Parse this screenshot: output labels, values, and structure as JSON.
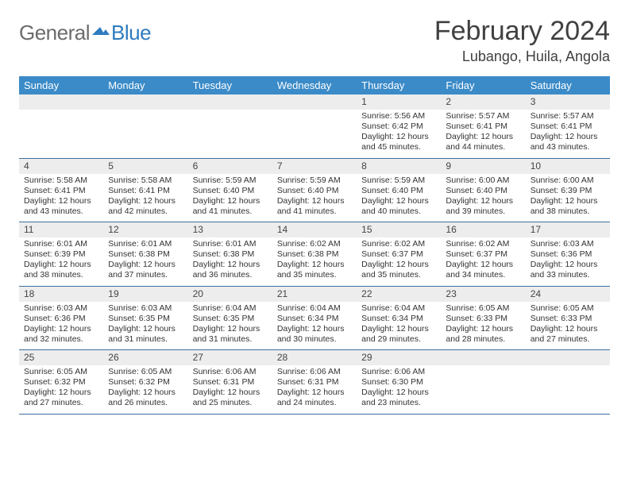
{
  "logo": {
    "general": "General",
    "blue": "Blue"
  },
  "title": "February 2024",
  "location": "Lubango, Huila, Angola",
  "colors": {
    "header_bg": "#3b8bc8",
    "header_text": "#ffffff",
    "date_row_bg": "#ededed",
    "week_border": "#3b6fa0",
    "logo_blue": "#2f7bbf",
    "logo_gray": "#6b6b6b"
  },
  "days_of_week": [
    "Sunday",
    "Monday",
    "Tuesday",
    "Wednesday",
    "Thursday",
    "Friday",
    "Saturday"
  ],
  "weeks": [
    [
      null,
      null,
      null,
      null,
      {
        "date": "1",
        "sunrise": "Sunrise: 5:56 AM",
        "sunset": "Sunset: 6:42 PM",
        "daylight1": "Daylight: 12 hours",
        "daylight2": "and 45 minutes."
      },
      {
        "date": "2",
        "sunrise": "Sunrise: 5:57 AM",
        "sunset": "Sunset: 6:41 PM",
        "daylight1": "Daylight: 12 hours",
        "daylight2": "and 44 minutes."
      },
      {
        "date": "3",
        "sunrise": "Sunrise: 5:57 AM",
        "sunset": "Sunset: 6:41 PM",
        "daylight1": "Daylight: 12 hours",
        "daylight2": "and 43 minutes."
      }
    ],
    [
      {
        "date": "4",
        "sunrise": "Sunrise: 5:58 AM",
        "sunset": "Sunset: 6:41 PM",
        "daylight1": "Daylight: 12 hours",
        "daylight2": "and 43 minutes."
      },
      {
        "date": "5",
        "sunrise": "Sunrise: 5:58 AM",
        "sunset": "Sunset: 6:41 PM",
        "daylight1": "Daylight: 12 hours",
        "daylight2": "and 42 minutes."
      },
      {
        "date": "6",
        "sunrise": "Sunrise: 5:59 AM",
        "sunset": "Sunset: 6:40 PM",
        "daylight1": "Daylight: 12 hours",
        "daylight2": "and 41 minutes."
      },
      {
        "date": "7",
        "sunrise": "Sunrise: 5:59 AM",
        "sunset": "Sunset: 6:40 PM",
        "daylight1": "Daylight: 12 hours",
        "daylight2": "and 41 minutes."
      },
      {
        "date": "8",
        "sunrise": "Sunrise: 5:59 AM",
        "sunset": "Sunset: 6:40 PM",
        "daylight1": "Daylight: 12 hours",
        "daylight2": "and 40 minutes."
      },
      {
        "date": "9",
        "sunrise": "Sunrise: 6:00 AM",
        "sunset": "Sunset: 6:40 PM",
        "daylight1": "Daylight: 12 hours",
        "daylight2": "and 39 minutes."
      },
      {
        "date": "10",
        "sunrise": "Sunrise: 6:00 AM",
        "sunset": "Sunset: 6:39 PM",
        "daylight1": "Daylight: 12 hours",
        "daylight2": "and 38 minutes."
      }
    ],
    [
      {
        "date": "11",
        "sunrise": "Sunrise: 6:01 AM",
        "sunset": "Sunset: 6:39 PM",
        "daylight1": "Daylight: 12 hours",
        "daylight2": "and 38 minutes."
      },
      {
        "date": "12",
        "sunrise": "Sunrise: 6:01 AM",
        "sunset": "Sunset: 6:38 PM",
        "daylight1": "Daylight: 12 hours",
        "daylight2": "and 37 minutes."
      },
      {
        "date": "13",
        "sunrise": "Sunrise: 6:01 AM",
        "sunset": "Sunset: 6:38 PM",
        "daylight1": "Daylight: 12 hours",
        "daylight2": "and 36 minutes."
      },
      {
        "date": "14",
        "sunrise": "Sunrise: 6:02 AM",
        "sunset": "Sunset: 6:38 PM",
        "daylight1": "Daylight: 12 hours",
        "daylight2": "and 35 minutes."
      },
      {
        "date": "15",
        "sunrise": "Sunrise: 6:02 AM",
        "sunset": "Sunset: 6:37 PM",
        "daylight1": "Daylight: 12 hours",
        "daylight2": "and 35 minutes."
      },
      {
        "date": "16",
        "sunrise": "Sunrise: 6:02 AM",
        "sunset": "Sunset: 6:37 PM",
        "daylight1": "Daylight: 12 hours",
        "daylight2": "and 34 minutes."
      },
      {
        "date": "17",
        "sunrise": "Sunrise: 6:03 AM",
        "sunset": "Sunset: 6:36 PM",
        "daylight1": "Daylight: 12 hours",
        "daylight2": "and 33 minutes."
      }
    ],
    [
      {
        "date": "18",
        "sunrise": "Sunrise: 6:03 AM",
        "sunset": "Sunset: 6:36 PM",
        "daylight1": "Daylight: 12 hours",
        "daylight2": "and 32 minutes."
      },
      {
        "date": "19",
        "sunrise": "Sunrise: 6:03 AM",
        "sunset": "Sunset: 6:35 PM",
        "daylight1": "Daylight: 12 hours",
        "daylight2": "and 31 minutes."
      },
      {
        "date": "20",
        "sunrise": "Sunrise: 6:04 AM",
        "sunset": "Sunset: 6:35 PM",
        "daylight1": "Daylight: 12 hours",
        "daylight2": "and 31 minutes."
      },
      {
        "date": "21",
        "sunrise": "Sunrise: 6:04 AM",
        "sunset": "Sunset: 6:34 PM",
        "daylight1": "Daylight: 12 hours",
        "daylight2": "and 30 minutes."
      },
      {
        "date": "22",
        "sunrise": "Sunrise: 6:04 AM",
        "sunset": "Sunset: 6:34 PM",
        "daylight1": "Daylight: 12 hours",
        "daylight2": "and 29 minutes."
      },
      {
        "date": "23",
        "sunrise": "Sunrise: 6:05 AM",
        "sunset": "Sunset: 6:33 PM",
        "daylight1": "Daylight: 12 hours",
        "daylight2": "and 28 minutes."
      },
      {
        "date": "24",
        "sunrise": "Sunrise: 6:05 AM",
        "sunset": "Sunset: 6:33 PM",
        "daylight1": "Daylight: 12 hours",
        "daylight2": "and 27 minutes."
      }
    ],
    [
      {
        "date": "25",
        "sunrise": "Sunrise: 6:05 AM",
        "sunset": "Sunset: 6:32 PM",
        "daylight1": "Daylight: 12 hours",
        "daylight2": "and 27 minutes."
      },
      {
        "date": "26",
        "sunrise": "Sunrise: 6:05 AM",
        "sunset": "Sunset: 6:32 PM",
        "daylight1": "Daylight: 12 hours",
        "daylight2": "and 26 minutes."
      },
      {
        "date": "27",
        "sunrise": "Sunrise: 6:06 AM",
        "sunset": "Sunset: 6:31 PM",
        "daylight1": "Daylight: 12 hours",
        "daylight2": "and 25 minutes."
      },
      {
        "date": "28",
        "sunrise": "Sunrise: 6:06 AM",
        "sunset": "Sunset: 6:31 PM",
        "daylight1": "Daylight: 12 hours",
        "daylight2": "and 24 minutes."
      },
      {
        "date": "29",
        "sunrise": "Sunrise: 6:06 AM",
        "sunset": "Sunset: 6:30 PM",
        "daylight1": "Daylight: 12 hours",
        "daylight2": "and 23 minutes."
      },
      null,
      null
    ]
  ]
}
